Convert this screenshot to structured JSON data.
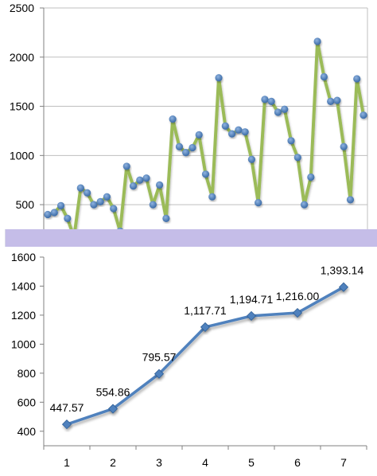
{
  "chart_data": [
    {
      "type": "line",
      "title": "",
      "xlabel": "",
      "ylabel": "",
      "ylim": [
        250,
        2500
      ],
      "y_ticks": [
        "500",
        "1000",
        "1500",
        "2000",
        "2500"
      ],
      "y_tick_values": [
        500,
        1000,
        1500,
        2000,
        2500
      ],
      "grid": true,
      "series": [
        {
          "values": [
            400,
            420,
            490,
            360,
            170,
            670,
            620,
            500,
            530,
            580,
            460,
            230,
            890,
            690,
            750,
            770,
            500,
            700,
            360,
            1370,
            1090,
            1030,
            1080,
            1210,
            810,
            580,
            1790,
            1300,
            1220,
            1260,
            1240,
            960,
            520,
            1570,
            1550,
            1440,
            1470,
            1150,
            980,
            500,
            780,
            2160,
            1800,
            1550,
            1560,
            1090,
            550,
            1780,
            1410
          ]
        }
      ],
      "colors": {
        "line": "#9bbb59",
        "marker": "#4f81bd"
      }
    },
    {
      "type": "line",
      "title": "",
      "xlabel": "",
      "ylabel": "",
      "ylim": [
        300,
        1600
      ],
      "categories": [
        "1",
        "2",
        "3",
        "4",
        "5",
        "6",
        "7"
      ],
      "y_ticks": [
        "400",
        "600",
        "800",
        "1000",
        "1200",
        "1400",
        "1600"
      ],
      "y_tick_values": [
        400,
        600,
        800,
        1000,
        1200,
        1400,
        1600
      ],
      "grid": false,
      "series": [
        {
          "values": [
            447.57,
            554.86,
            795.57,
            1117.71,
            1194.71,
            1216.0,
            1393.14
          ],
          "labels": [
            "447.57",
            "554.86",
            "795.57",
            "1,117.71",
            "1,194.71",
            "1,216.00",
            "1,393.14"
          ]
        }
      ],
      "colors": {
        "line": "#4f81bd",
        "marker": "#4f81bd"
      }
    }
  ]
}
